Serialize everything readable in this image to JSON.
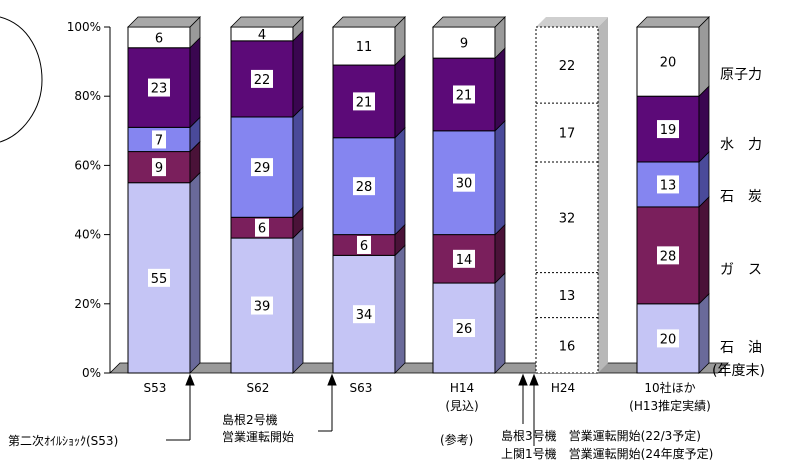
{
  "chart_data": {
    "type": "bar",
    "stacked": true,
    "percent_stacked": true,
    "categories": [
      "S53",
      "S62",
      "S63",
      "H14",
      "H24",
      "10社ほか"
    ],
    "category_sublabels": [
      "",
      "",
      "",
      "(見込)",
      "",
      "(H13推定実績)"
    ],
    "yticks": [
      "0%",
      "20%",
      "40%",
      "60%",
      "80%",
      "100%"
    ],
    "ylim": [
      0,
      100
    ],
    "series": [
      {
        "name": "石　油",
        "values": [
          55,
          39,
          34,
          26,
          16,
          20
        ]
      },
      {
        "name": "ガ　ス",
        "values": [
          9,
          6,
          6,
          14,
          13,
          28
        ]
      },
      {
        "name": "石　炭",
        "values": [
          7,
          29,
          28,
          30,
          32,
          13
        ]
      },
      {
        "name": "水　力",
        "values": [
          23,
          22,
          21,
          21,
          17,
          19
        ]
      },
      {
        "name": "原子力",
        "values": [
          6,
          4,
          11,
          9,
          22,
          20
        ]
      }
    ],
    "unit_note": "(年度末)",
    "reference_note": "(参考)",
    "annotations": [
      "第二次ｵｲﾙｼｮｯｸ(S53)",
      "島根2号機",
      "営業運転開始",
      "島根3号機　営業運転開始(22/3予定)",
      "上関1号機　営業運転開始(24年度予定)"
    ]
  },
  "colors": {
    "oil": "#c5c5f5",
    "gas": "#7a1f5c",
    "coal": "#8585f0",
    "hydro": "#5c0a78",
    "nuclear": "#ffffff",
    "side_oil": "#6a6a9a",
    "side_gas": "#4a1238",
    "side_coal": "#4a4a9a",
    "side_hydro": "#3a0650",
    "side_nuclear": "#9a9a9a",
    "floor": "#9a9a9a"
  }
}
